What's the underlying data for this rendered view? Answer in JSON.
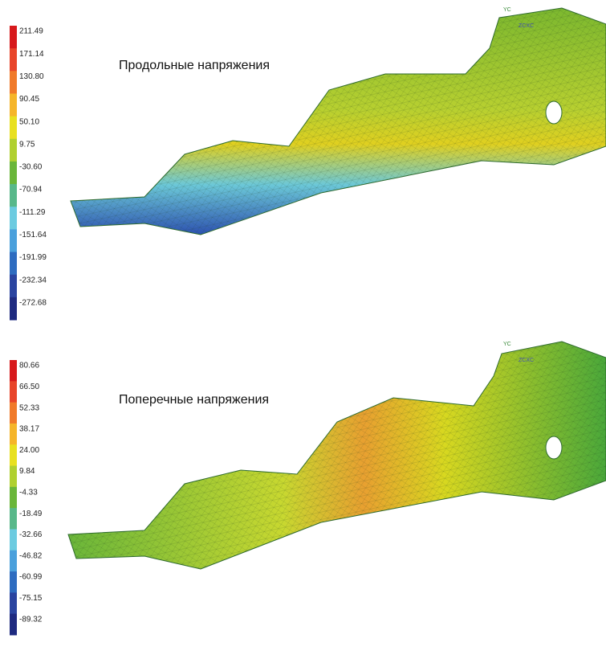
{
  "panels": [
    {
      "title": "Продольные напряжения",
      "legend": [
        "211.49",
        "171.14",
        "130.80",
        "90.45",
        "50.10",
        "9.75",
        "-30.60",
        "-70.94",
        "-111.29",
        "-151.64",
        "-191.99",
        "-232.34",
        "-272.68"
      ],
      "axis_labels": [
        "YC",
        "ZCXC"
      ]
    },
    {
      "title": "Поперечные напряжения",
      "legend": [
        "80.66",
        "66.50",
        "52.33",
        "38.17",
        "24.00",
        "9.84",
        "-4.33",
        "-18.49",
        "-32.66",
        "-46.82",
        "-60.99",
        "-75.15",
        "-89.32"
      ],
      "axis_labels": [
        "YC",
        "ZCXC"
      ]
    }
  ]
}
